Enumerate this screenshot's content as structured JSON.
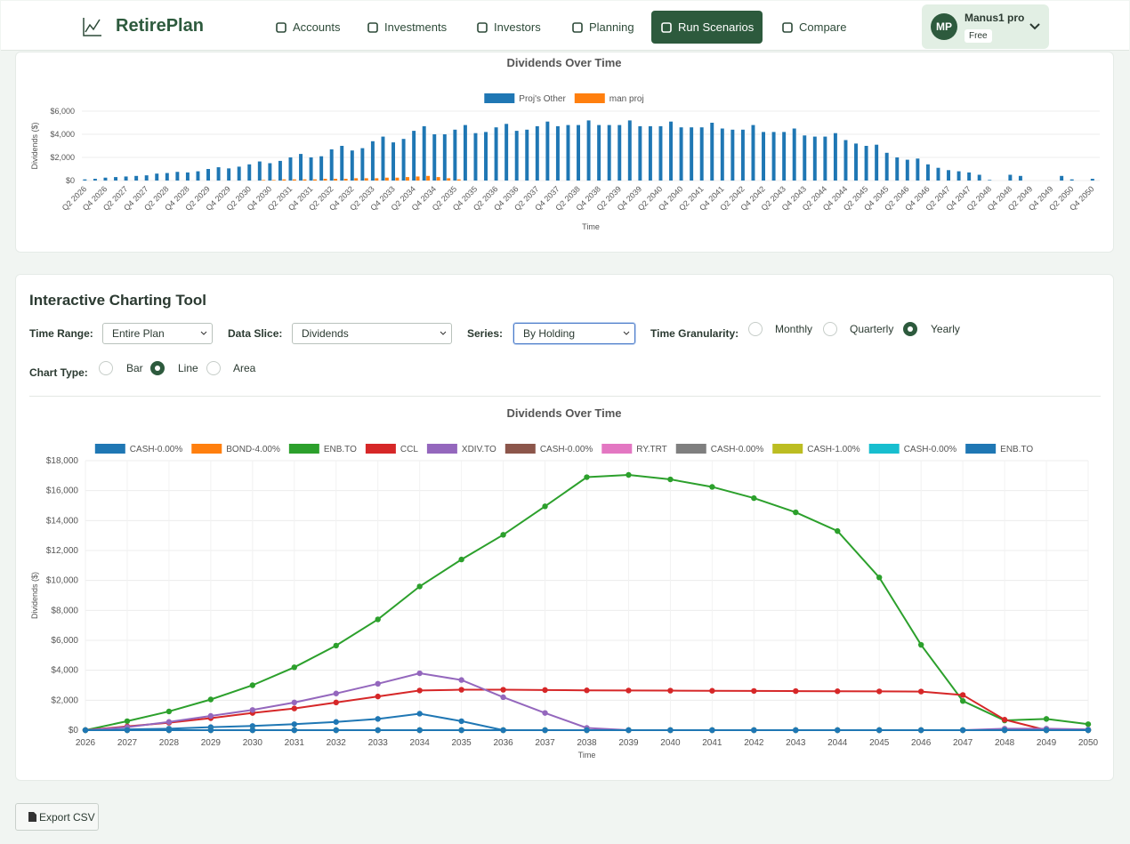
{
  "nav": {
    "brand": "RetirePlan",
    "items": [
      "Accounts",
      "Investments",
      "Investors",
      "Planning",
      "Run Scenarios",
      "Compare"
    ],
    "active": 4,
    "user": {
      "initials": "MP",
      "name": "Manus1 pro",
      "plan": "Free"
    }
  },
  "tool": {
    "title": "Interactive Charting Tool",
    "time_range": {
      "label": "Time Range:",
      "value": "Entire Plan"
    },
    "data_slice": {
      "label": "Data Slice:",
      "value": "Dividends"
    },
    "series": {
      "label": "Series:",
      "value": "By Holding"
    },
    "granularity": {
      "label": "Time Granularity:",
      "options": [
        "Monthly",
        "Quarterly",
        "Yearly"
      ],
      "selected": 2
    },
    "chart_type": {
      "label": "Chart Type:",
      "options": [
        "Bar",
        "Line",
        "Area"
      ],
      "selected": 1
    }
  },
  "export": "Export CSV",
  "chart_data": [
    {
      "type": "bar",
      "title": "Dividends Over Time",
      "x_label": "Time",
      "y_label": "Dividends ($)",
      "categories": [
        "Q2 2026",
        null,
        "Q4 2026",
        null,
        "Q2 2027",
        null,
        "Q4 2027",
        null,
        "Q2 2028",
        null,
        "Q4 2028",
        null,
        "Q2 2029",
        null,
        "Q4 2029",
        null,
        "Q2 2030",
        null,
        "Q4 2030",
        null,
        "Q2 2031",
        null,
        "Q4 2031",
        null,
        "Q2 2032",
        null,
        "Q4 2032",
        null,
        "Q2 2033",
        null,
        "Q4 2033",
        null,
        "Q2 2034",
        null,
        "Q4 2034",
        null,
        "Q2 2035",
        null,
        "Q4 2035",
        null,
        "Q2 2036",
        null,
        "Q4 2036",
        null,
        "Q2 2037",
        null,
        "Q4 2037",
        null,
        "Q2 2038",
        null,
        "Q4 2038",
        null,
        "Q2 2039",
        null,
        "Q4 2039",
        null,
        "Q2 2040",
        null,
        "Q4 2040",
        null,
        "Q2 2041",
        null,
        "Q4 2041",
        null,
        "Q2 2042",
        null,
        "Q4 2042",
        null,
        "Q2 2043",
        null,
        "Q4 2043",
        null,
        "Q2 2044",
        null,
        "Q4 2044",
        null,
        "Q2 2045",
        null,
        "Q4 2045",
        null,
        "Q2 2046",
        null,
        "Q4 2046",
        null,
        "Q2 2047",
        null,
        "Q4 2047",
        null,
        "Q2 2048",
        null,
        "Q4 2048",
        null,
        "Q2 2049",
        null,
        "Q4 2049",
        null,
        "Q2 2050",
        null,
        "Q4 2050"
      ],
      "series": [
        {
          "name": "Proj's Other",
          "color": "#1f77b4",
          "values": [
            100,
            150,
            250,
            300,
            350,
            400,
            450,
            600,
            650,
            750,
            700,
            800,
            1000,
            1150,
            1050,
            1200,
            1400,
            1650,
            1500,
            1700,
            2000,
            2300,
            2000,
            2100,
            2700,
            3000,
            2600,
            2800,
            3400,
            3800,
            3300,
            3600,
            4300,
            4700,
            4000,
            4000,
            4400,
            4800,
            4100,
            4200,
            4600,
            4900,
            4300,
            4400,
            4700,
            5100,
            4700,
            4800,
            4800,
            5200,
            4800,
            4800,
            4800,
            5200,
            4700,
            4700,
            4700,
            5100,
            4600,
            4600,
            4600,
            5000,
            4500,
            4400,
            4400,
            4800,
            4200,
            4200,
            4200,
            4500,
            3900,
            3800,
            3800,
            4100,
            3500,
            3200,
            3000,
            3100,
            2400,
            2000,
            1800,
            1900,
            1400,
            1100,
            900,
            800,
            700,
            500,
            50,
            0,
            500,
            400,
            0,
            0,
            0,
            400,
            100,
            0,
            150
          ]
        },
        {
          "name": "man proj",
          "color": "#ff7f0e",
          "values": [
            0,
            0,
            0,
            0,
            0,
            0,
            0,
            0,
            0,
            0,
            0,
            0,
            0,
            0,
            0,
            0,
            0,
            50,
            50,
            100,
            100,
            100,
            100,
            150,
            150,
            150,
            200,
            200,
            200,
            250,
            250,
            300,
            350,
            400,
            300,
            200,
            100,
            0,
            0,
            0,
            0,
            0,
            0,
            0,
            0,
            0,
            0,
            0,
            0,
            0,
            0,
            0,
            0,
            0,
            0,
            0,
            0,
            0,
            0,
            0,
            0,
            0,
            0,
            0,
            0,
            0,
            0,
            0,
            0,
            0,
            0,
            0,
            0,
            0,
            0,
            0,
            0,
            0,
            0,
            0,
            0,
            0,
            0,
            0,
            0,
            0,
            0,
            0,
            0,
            0,
            0,
            0,
            0,
            0,
            0,
            0,
            0,
            0,
            0
          ]
        }
      ],
      "ylim": [
        0,
        6000
      ],
      "yticks": [
        {
          "value": 0,
          "label": "$0"
        },
        {
          "value": 2000,
          "label": "$2,000"
        },
        {
          "value": 4000,
          "label": "$4,000"
        },
        {
          "value": 6000,
          "label": "$6,000"
        }
      ],
      "grid": true
    },
    {
      "type": "line",
      "title": "Dividends Over Time",
      "x_label": "Time",
      "y_label": "Dividends ($)",
      "categories": [
        "2026",
        "2027",
        "2028",
        "2029",
        "2030",
        "2031",
        "2032",
        "2033",
        "2034",
        "2035",
        "2036",
        "2037",
        "2038",
        "2039",
        "2040",
        "2041",
        "2042",
        "2043",
        "2044",
        "2045",
        "2046",
        "2047",
        "2048",
        "2049",
        "2050"
      ],
      "series": [
        {
          "name": "CASH-0.00%",
          "color": "#1f77b4",
          "values": [
            0,
            50,
            100,
            200,
            280,
            400,
            550,
            750,
            1100,
            600,
            0,
            0,
            0,
            0,
            0,
            0,
            0,
            0,
            0,
            0,
            0,
            0,
            0,
            0,
            0
          ]
        },
        {
          "name": "BOND-4.00%",
          "color": "#ff7f0e",
          "values": [
            0,
            0,
            0,
            0,
            0,
            0,
            0,
            0,
            0,
            0,
            0,
            0,
            0,
            0,
            0,
            0,
            0,
            0,
            0,
            0,
            0,
            0,
            0,
            0,
            0
          ]
        },
        {
          "name": "ENB.TO",
          "color": "#2ca02c",
          "values": [
            0,
            600,
            1250,
            2050,
            3000,
            4200,
            5650,
            7400,
            9600,
            11400,
            13050,
            14950,
            16900,
            17050,
            16750,
            16250,
            15500,
            14550,
            13300,
            10200,
            5700,
            1950,
            650,
            750,
            400
          ]
        },
        {
          "name": "CCL",
          "color": "#d62728",
          "values": [
            0,
            250,
            500,
            800,
            1150,
            1450,
            1850,
            2250,
            2650,
            2700,
            2700,
            2680,
            2660,
            2650,
            2640,
            2630,
            2620,
            2610,
            2600,
            2590,
            2580,
            2350,
            700,
            0,
            0
          ]
        },
        {
          "name": "XDIV.TO",
          "color": "#9467bd",
          "values": [
            0,
            200,
            550,
            950,
            1350,
            1850,
            2450,
            3100,
            3800,
            3350,
            2200,
            1150,
            150,
            0,
            0,
            0,
            0,
            0,
            0,
            0,
            0,
            0,
            100,
            100,
            50
          ]
        },
        {
          "name": "CASH-0.00%",
          "color": "#8c564b",
          "values": [
            0,
            0,
            0,
            0,
            0,
            0,
            0,
            0,
            0,
            0,
            0,
            0,
            0,
            0,
            0,
            0,
            0,
            0,
            0,
            0,
            0,
            0,
            0,
            0,
            0
          ]
        },
        {
          "name": "RY.TRT",
          "color": "#e377c2",
          "values": [
            0,
            0,
            0,
            0,
            0,
            0,
            0,
            0,
            0,
            0,
            0,
            0,
            0,
            0,
            0,
            0,
            0,
            0,
            0,
            0,
            0,
            0,
            0,
            0,
            0
          ]
        },
        {
          "name": "CASH-0.00%",
          "color": "#7f7f7f",
          "values": [
            0,
            0,
            0,
            0,
            0,
            0,
            0,
            0,
            0,
            0,
            0,
            0,
            0,
            0,
            0,
            0,
            0,
            0,
            0,
            0,
            0,
            0,
            0,
            0,
            0
          ]
        },
        {
          "name": "CASH-1.00%",
          "color": "#bcbd22",
          "values": [
            0,
            0,
            0,
            0,
            0,
            0,
            0,
            0,
            0,
            0,
            0,
            0,
            0,
            0,
            0,
            0,
            0,
            0,
            0,
            0,
            0,
            0,
            0,
            0,
            0
          ]
        },
        {
          "name": "CASH-0.00%",
          "color": "#17becf",
          "values": [
            0,
            0,
            0,
            0,
            0,
            0,
            0,
            0,
            0,
            0,
            0,
            0,
            0,
            0,
            0,
            0,
            0,
            0,
            0,
            0,
            0,
            0,
            0,
            0,
            0
          ]
        },
        {
          "name": "ENB.TO",
          "color": "#1f77b4",
          "values": [
            0,
            0,
            0,
            0,
            0,
            0,
            0,
            0,
            0,
            0,
            0,
            0,
            0,
            0,
            0,
            0,
            0,
            0,
            0,
            0,
            0,
            0,
            0,
            0,
            0
          ]
        }
      ],
      "ylim": [
        0,
        18000
      ],
      "yticks": [
        {
          "value": 0,
          "label": "$0"
        },
        {
          "value": 2000,
          "label": "$2,000"
        },
        {
          "value": 4000,
          "label": "$4,000"
        },
        {
          "value": 6000,
          "label": "$6,000"
        },
        {
          "value": 8000,
          "label": "$8,000"
        },
        {
          "value": 10000,
          "label": "$10,000"
        },
        {
          "value": 12000,
          "label": "$12,000"
        },
        {
          "value": 14000,
          "label": "$14,000"
        },
        {
          "value": 16000,
          "label": "$16,000"
        },
        {
          "value": 18000,
          "label": "$18,000"
        }
      ],
      "grid": true
    }
  ]
}
